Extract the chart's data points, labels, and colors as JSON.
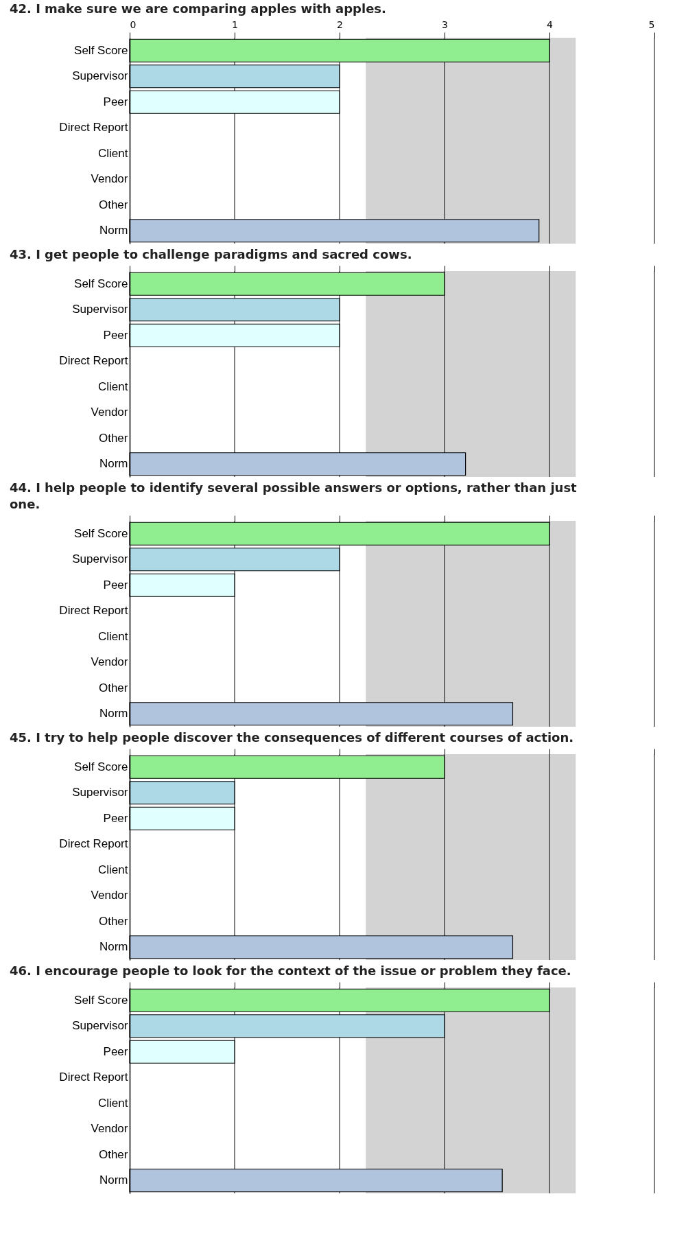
{
  "chart_data": [
    {
      "type": "bar",
      "orientation": "horizontal",
      "title": "42.  I make sure we are comparing apples with apples.",
      "categories": [
        "Self Score",
        "Supervisor",
        "Peer",
        "Direct Report",
        "Client",
        "Vendor",
        "Other",
        "Norm"
      ],
      "values": [
        4,
        2,
        2,
        null,
        null,
        null,
        null,
        3.9
      ],
      "colors": [
        "#90ee90",
        "#add8e6",
        "#e0ffff",
        null,
        null,
        null,
        null,
        "#b0c4de"
      ],
      "xlim": [
        0,
        5
      ],
      "xticks": [
        0,
        1,
        2,
        3,
        4,
        5
      ],
      "grid": "x",
      "bands": [
        {
          "axis": "x",
          "from": 2.25,
          "to": 4.25,
          "color": "#d3d3d3"
        }
      ]
    },
    {
      "type": "bar",
      "orientation": "horizontal",
      "title": "43.  I get people to challenge paradigms and sacred cows.",
      "categories": [
        "Self Score",
        "Supervisor",
        "Peer",
        "Direct Report",
        "Client",
        "Vendor",
        "Other",
        "Norm"
      ],
      "values": [
        3,
        2,
        2,
        null,
        null,
        null,
        null,
        3.2
      ],
      "colors": [
        "#90ee90",
        "#add8e6",
        "#e0ffff",
        null,
        null,
        null,
        null,
        "#b0c4de"
      ],
      "xlim": [
        0,
        5
      ],
      "xticks": [
        0,
        1,
        2,
        3,
        4,
        5
      ],
      "tick_labels": "y",
      "grid": "x",
      "bands": [
        {
          "axis": "x",
          "from": 2.25,
          "to": 4.25,
          "color": "#d3d3d3"
        }
      ]
    },
    {
      "type": "bar",
      "orientation": "horizontal",
      "title": "44.  I help people to identify several possible answers or options, rather than just one.",
      "categories": [
        "Self Score",
        "Supervisor",
        "Peer",
        "Direct Report",
        "Client",
        "Vendor",
        "Other",
        "Norm"
      ],
      "values": [
        4,
        2,
        1,
        null,
        null,
        null,
        null,
        3.65
      ],
      "colors": [
        "#90ee90",
        "#add8e6",
        "#e0ffff",
        null,
        null,
        null,
        null,
        "#b0c4de"
      ],
      "xlim": [
        0,
        5
      ],
      "xticks": [
        0,
        1,
        2,
        3,
        4,
        5
      ],
      "tick_labels": "y",
      "grid": "x",
      "bands": [
        {
          "axis": "x",
          "from": 2.25,
          "to": 4.25,
          "color": "#d3d3d3"
        }
      ]
    },
    {
      "type": "bar",
      "orientation": "horizontal",
      "title": "45.  I try to help people discover the consequences of different courses of action.",
      "categories": [
        "Self Score",
        "Supervisor",
        "Peer",
        "Direct Report",
        "Client",
        "Vendor",
        "Other",
        "Norm"
      ],
      "values": [
        3,
        1,
        1,
        null,
        null,
        null,
        null,
        3.65
      ],
      "colors": [
        "#90ee90",
        "#add8e6",
        "#e0ffff",
        null,
        null,
        null,
        null,
        "#b0c4de"
      ],
      "xlim": [
        0,
        5
      ],
      "xticks": [
        0,
        1,
        2,
        3,
        4,
        5
      ],
      "tick_labels": "y",
      "grid": "x",
      "bands": [
        {
          "axis": "x",
          "from": 2.25,
          "to": 4.25,
          "color": "#d3d3d3"
        }
      ]
    },
    {
      "type": "bar",
      "orientation": "horizontal",
      "title": "46.  I encourage people to look for the context of the issue or problem they face.",
      "categories": [
        "Self Score",
        "Supervisor",
        "Peer",
        "Direct Report",
        "Client",
        "Vendor",
        "Other",
        "Norm"
      ],
      "values": [
        4,
        3,
        1,
        null,
        null,
        null,
        null,
        3.55
      ],
      "colors": [
        "#90ee90",
        "#add8e6",
        "#e0ffff",
        null,
        null,
        null,
        null,
        "#b0c4de"
      ],
      "xlim": [
        0,
        5
      ],
      "xticks": [
        0,
        1,
        2,
        3,
        4,
        5
      ],
      "tick_labels": "y",
      "grid": "x",
      "bands": [
        {
          "axis": "x",
          "from": 2.25,
          "to": 4.25,
          "color": "#d3d3d3"
        }
      ]
    }
  ]
}
